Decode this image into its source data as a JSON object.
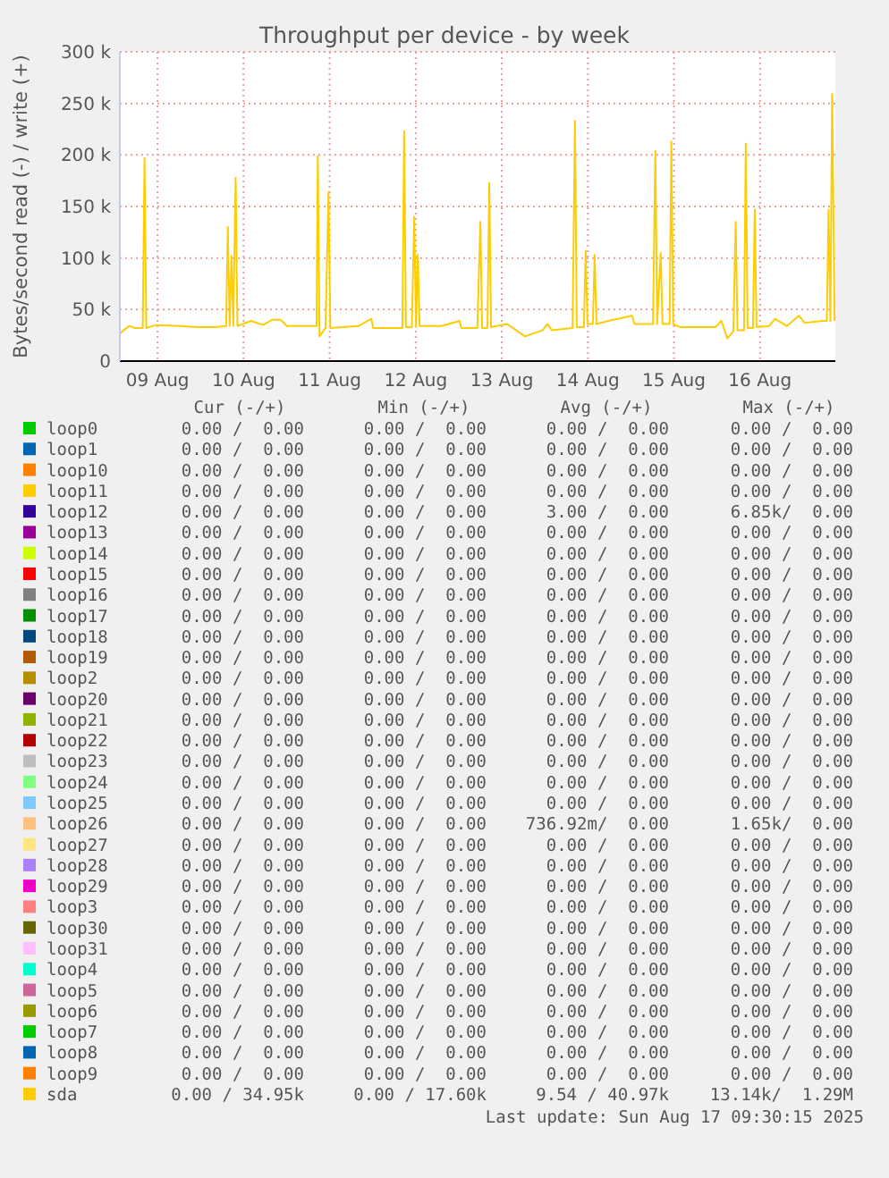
{
  "chart_data": {
    "type": "line",
    "title": "Throughput per device - by week",
    "ylabel": "Bytes/second read (-) / write (+)",
    "xlim": [
      "2025-08-09T01:30",
      "2025-08-17T09:00"
    ],
    "xticks": [
      {
        "value": "2025-08-09T12:00",
        "label": "09 Aug"
      },
      {
        "value": "2025-08-10T12:00",
        "label": "10 Aug"
      },
      {
        "value": "2025-08-11T12:00",
        "label": "11 Aug"
      },
      {
        "value": "2025-08-12T12:00",
        "label": "12 Aug"
      },
      {
        "value": "2025-08-13T12:00",
        "label": "13 Aug"
      },
      {
        "value": "2025-08-14T12:00",
        "label": "14 Aug"
      },
      {
        "value": "2025-08-15T12:00",
        "label": "15 Aug"
      },
      {
        "value": "2025-08-16T12:00",
        "label": "16 Aug"
      }
    ],
    "ylim": [
      0,
      300000
    ],
    "yticks": [
      0,
      {
        "value": 50000,
        "label": "50 k"
      },
      {
        "value": 100000,
        "label": "100 k"
      },
      {
        "value": 150000,
        "label": "150 k"
      },
      {
        "value": 200000,
        "label": "200 k"
      },
      {
        "value": 250000,
        "label": "250 k"
      },
      {
        "value": 300000,
        "label": "300 k"
      }
    ],
    "grid": true,
    "legend": "bottom",
    "series": [
      {
        "name": "loop0",
        "color": "#00cc00"
      },
      {
        "name": "loop1",
        "color": "#0066b3"
      },
      {
        "name": "loop10",
        "color": "#ff8000"
      },
      {
        "name": "loop11",
        "color": "#ffcc00"
      },
      {
        "name": "loop12",
        "color": "#330099"
      },
      {
        "name": "loop13",
        "color": "#990099"
      },
      {
        "name": "loop14",
        "color": "#ccff00"
      },
      {
        "name": "loop15",
        "color": "#ff0000"
      },
      {
        "name": "loop16",
        "color": "#808080"
      },
      {
        "name": "loop17",
        "color": "#008f00"
      },
      {
        "name": "loop18",
        "color": "#00487d"
      },
      {
        "name": "loop19",
        "color": "#b35a00"
      },
      {
        "name": "loop2",
        "color": "#b38f00"
      },
      {
        "name": "loop20",
        "color": "#6b006b"
      },
      {
        "name": "loop21",
        "color": "#8fb300"
      },
      {
        "name": "loop22",
        "color": "#b30000"
      },
      {
        "name": "loop23",
        "color": "#bebebe"
      },
      {
        "name": "loop24",
        "color": "#80ff80"
      },
      {
        "name": "loop25",
        "color": "#80c9ff"
      },
      {
        "name": "loop26",
        "color": "#ffc080"
      },
      {
        "name": "loop27",
        "color": "#ffe680"
      },
      {
        "name": "loop28",
        "color": "#aa80ff"
      },
      {
        "name": "loop29",
        "color": "#ee00cc"
      },
      {
        "name": "loop3",
        "color": "#ff8080"
      },
      {
        "name": "loop30",
        "color": "#666600"
      },
      {
        "name": "loop31",
        "color": "#ffbfff"
      },
      {
        "name": "loop4",
        "color": "#00ffcc"
      },
      {
        "name": "loop5",
        "color": "#cc6699"
      },
      {
        "name": "loop6",
        "color": "#999900"
      },
      {
        "name": "loop7",
        "color": "#00cc00"
      },
      {
        "name": "loop8",
        "color": "#0066b3"
      },
      {
        "name": "loop9",
        "color": "#ff8000"
      },
      {
        "name": "sda",
        "color": "#ffcc00",
        "x": [
          "2025-08-09T01:35",
          "2025-08-09T04:04",
          "2025-08-09T05:44",
          "2025-08-09T07:53",
          "2025-08-09T08:23",
          "2025-08-09T08:53",
          "2025-08-09T11:32",
          "2025-08-09T18:11",
          "2025-08-09T23:10",
          "2025-08-10T04:08",
          "2025-08-10T07:08",
          "2025-08-10T07:37",
          "2025-08-10T08:07",
          "2025-08-10T08:37",
          "2025-08-10T09:07",
          "2025-08-10T09:47",
          "2025-08-10T10:17",
          "2025-08-10T14:06",
          "2025-08-10T17:25",
          "2025-08-10T19:55",
          "2025-08-10T22:24",
          "2025-08-11T00:04",
          "2025-08-11T06:42",
          "2025-08-11T08:21",
          "2025-08-11T08:41",
          "2025-08-11T09:11",
          "2025-08-11T10:51",
          "2025-08-11T11:41",
          "2025-08-11T12:11",
          "2025-08-11T19:59",
          "2025-08-11T23:38",
          "2025-08-12T00:08",
          "2025-08-12T07:36",
          "2025-08-12T08:16",
          "2025-08-12T08:46",
          "2025-08-12T09:16",
          "2025-08-12T10:55",
          "2025-08-12T11:35",
          "2025-08-12T12:05",
          "2025-08-12T12:35",
          "2025-08-12T13:05",
          "2025-08-12T19:13",
          "2025-08-13T00:12",
          "2025-08-13T00:42",
          "2025-08-13T05:11",
          "2025-08-13T06:01",
          "2025-08-13T06:31",
          "2025-08-13T08:00",
          "2025-08-13T08:30",
          "2025-08-13T09:00",
          "2025-08-13T13:29",
          "2025-08-13T18:28",
          "2025-08-13T23:26",
          "2025-08-14T00:46",
          "2025-08-14T01:56",
          "2025-08-14T07:44",
          "2025-08-14T08:24",
          "2025-08-14T08:54",
          "2025-08-14T10:53",
          "2025-08-14T11:23",
          "2025-08-14T11:53",
          "2025-08-14T13:23",
          "2025-08-14T13:53",
          "2025-08-14T14:23",
          "2025-08-14T17:42",
          "2025-08-15T00:20",
          "2025-08-15T01:00",
          "2025-08-15T06:09",
          "2025-08-15T06:49",
          "2025-08-15T07:19",
          "2025-08-15T08:18",
          "2025-08-15T08:48",
          "2025-08-15T10:47",
          "2025-08-15T11:17",
          "2025-08-15T11:47",
          "2025-08-15T13:37",
          "2025-08-15T23:35",
          "2025-08-16T01:14",
          "2025-08-16T02:54",
          "2025-08-16T04:34",
          "2025-08-16T05:13",
          "2025-08-16T05:43",
          "2025-08-16T07:32",
          "2025-08-16T08:02",
          "2025-08-16T08:32",
          "2025-08-16T10:02",
          "2025-08-16T10:32",
          "2025-08-16T11:02",
          "2025-08-16T14:31",
          "2025-08-16T16:11",
          "2025-08-16T19:30",
          "2025-08-16T22:49",
          "2025-08-17T00:29",
          "2025-08-17T05:28",
          "2025-08-17T06:37",
          "2025-08-17T07:07",
          "2025-08-17T07:37",
          "2025-08-17T08:07",
          "2025-08-17T08:47"
        ],
        "values": [
          27000,
          34000,
          32000,
          32000,
          197000,
          32000,
          35000,
          34000,
          33000,
          33000,
          34000,
          130000,
          34000,
          102000,
          34000,
          178000,
          34000,
          39000,
          35000,
          40000,
          40000,
          34000,
          34000,
          34000,
          199000,
          24000,
          32000,
          164000,
          32000,
          34000,
          41000,
          32000,
          32000,
          32000,
          223000,
          33000,
          33000,
          140000,
          33000,
          103000,
          34000,
          34000,
          39000,
          32000,
          32000,
          135000,
          32000,
          32000,
          173000,
          33000,
          36000,
          24000,
          30000,
          36000,
          30000,
          32000,
          233000,
          33000,
          33000,
          107000,
          36000,
          36000,
          103000,
          36000,
          39000,
          44000,
          36000,
          36000,
          204000,
          36000,
          105000,
          36000,
          36000,
          213000,
          36000,
          33000,
          33000,
          39000,
          22000,
          29000,
          135000,
          30000,
          30000,
          211000,
          32000,
          32000,
          147000,
          33000,
          34000,
          41000,
          34000,
          44000,
          37000,
          39000,
          39000,
          147000,
          39000,
          259000,
          39000
        ]
      }
    ],
    "annotations": [
      "Cur (-/+)   Min (-/+)   Avg (-/+)   Max (-/+)",
      "0.00 /  0.00   0.00 /  0.00   0.00 /  0.00   0.00 /  0.00",
      "0.00 /  0.00   0.00 /  0.00   0.00 /  0.00   0.00 /  0.00",
      "0.00 /  0.00   0.00 /  0.00   0.00 /  0.00   0.00 /  0.00",
      "0.00 /  0.00   0.00 /  0.00   0.00 /  0.00   0.00 /  0.00",
      "0.00 /  0.00   0.00 /  0.00   3.00 /  0.00   6.85k/  0.00",
      "0.00 /  0.00   0.00 /  0.00   0.00 /  0.00   0.00 /  0.00",
      "0.00 /  0.00   0.00 /  0.00   0.00 /  0.00   0.00 /  0.00",
      "0.00 /  0.00   0.00 /  0.00   0.00 /  0.00   0.00 /  0.00",
      "0.00 /  0.00   0.00 /  0.00   0.00 /  0.00   0.00 /  0.00",
      "0.00 /  0.00   0.00 /  0.00   0.00 /  0.00   0.00 /  0.00",
      "0.00 /  0.00   0.00 /  0.00   0.00 /  0.00   0.00 /  0.00",
      "0.00 /  0.00   0.00 /  0.00   0.00 /  0.00   0.00 /  0.00",
      "0.00 /  0.00   0.00 /  0.00   0.00 /  0.00   0.00 /  0.00",
      "0.00 /  0.00   0.00 /  0.00   0.00 /  0.00   0.00 /  0.00",
      "0.00 /  0.00   0.00 /  0.00   0.00 /  0.00   0.00 /  0.00",
      "0.00 /  0.00   0.00 /  0.00   0.00 /  0.00   0.00 /  0.00",
      "0.00 /  0.00   0.00 /  0.00   0.00 /  0.00   0.00 /  0.00",
      "0.00 /  0.00   0.00 /  0.00   0.00 /  0.00   0.00 /  0.00",
      "0.00 /  0.00   0.00 /  0.00   0.00 /  0.00   0.00 /  0.00",
      "0.00 /  0.00   0.00 /  0.00   736.92m/  0.00   1.65k/  0.00",
      "0.00 /  0.00   0.00 /  0.00   0.00 /  0.00   0.00 /  0.00",
      "0.00 /  0.00   0.00 /  0.00   0.00 /  0.00   0.00 /  0.00",
      "0.00 /  0.00   0.00 /  0.00   0.00 /  0.00   0.00 /  0.00",
      "0.00 /  0.00   0.00 /  0.00   0.00 /  0.00   0.00 /  0.00",
      "0.00 /  0.00   0.00 /  0.00   0.00 /  0.00   0.00 /  0.00",
      "0.00 /  0.00   0.00 /  0.00   0.00 /  0.00   0.00 /  0.00",
      "0.00 /  0.00   0.00 /  0.00   0.00 /  0.00   0.00 /  0.00",
      "0.00 /  0.00   0.00 /  0.00   0.00 /  0.00   0.00 /  0.00",
      "0.00 /  0.00   0.00 /  0.00   0.00 /  0.00   0.00 /  0.00",
      "0.00 /  0.00   0.00 /  0.00   0.00 /  0.00   0.00 /  0.00",
      "0.00 /  0.00   0.00 /  0.00   0.00 /  0.00   0.00 /  0.00",
      "0.00 /  0.00   0.00 /  0.00   0.00 /  0.00   0.00 /  0.00",
      "0.00 / 34.95k   0.00 / 17.60k   9.54 / 40.97k   13.14k/  1.29M",
      "Last update: Sun Aug 17 09:30:15 2025"
    ]
  }
}
